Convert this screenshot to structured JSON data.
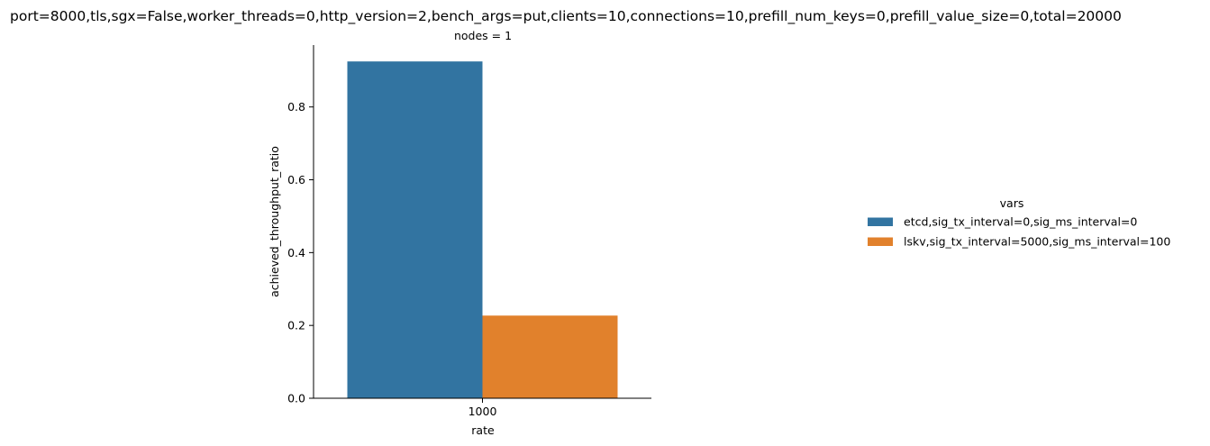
{
  "chart_data": {
    "type": "bar",
    "suptitle": "port=8000,tls,sgx=False,worker_threads=0,http_version=2,bench_args=put,clients=10,connections=10,prefill_num_keys=0,prefill_value_size=0,total=20000",
    "facet_title": "nodes = 1",
    "xlabel": "rate",
    "ylabel": "achieved_throughput_ratio",
    "categories": [
      "1000"
    ],
    "ylim": [
      0,
      0.97
    ],
    "yticks": [
      0.0,
      0.2,
      0.4,
      0.6,
      0.8
    ],
    "ytick_labels": [
      "0.0",
      "0.2",
      "0.4",
      "0.6",
      "0.8"
    ],
    "grid": false,
    "legend": {
      "title": "vars",
      "placement": "right",
      "entries": [
        "etcd,sig_tx_interval=0,sig_ms_interval=0",
        "lskv,sig_tx_interval=5000,sig_ms_interval=100"
      ]
    },
    "series": [
      {
        "name": "etcd,sig_tx_interval=0,sig_ms_interval=0",
        "values": [
          0.925
        ],
        "color": "#3274a1"
      },
      {
        "name": "lskv,sig_tx_interval=5000,sig_ms_interval=100",
        "values": [
          0.227
        ],
        "color": "#e1812c"
      }
    ]
  }
}
